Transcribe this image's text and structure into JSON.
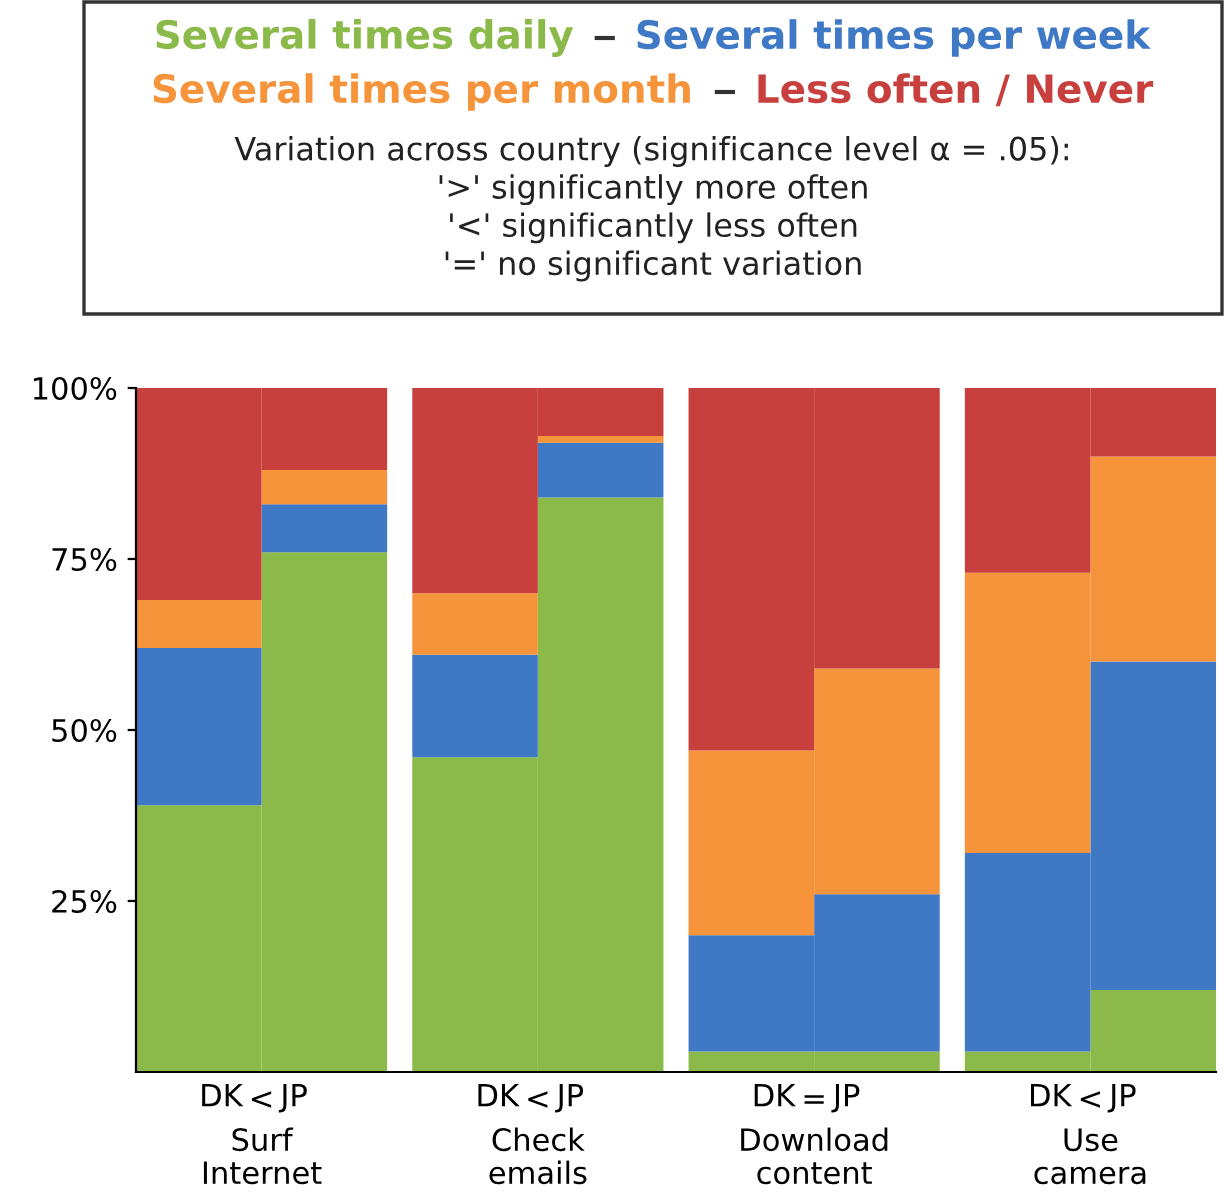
{
  "chart_data": {
    "type": "bar",
    "stacked": true,
    "categories": [
      "DK",
      "JP",
      "DK",
      "JP",
      "DK",
      "JP",
      "DK",
      "JP"
    ],
    "series": [
      {
        "name": "Several times daily",
        "color": "#8cba4a",
        "values": [
          39,
          76,
          46,
          84,
          3,
          3,
          3,
          12
        ]
      },
      {
        "name": "Several times per week",
        "color": "#3f78c4",
        "values": [
          23,
          7,
          15,
          8,
          17,
          23,
          29,
          48
        ]
      },
      {
        "name": "Several times per month",
        "color": "#f5943a",
        "values": [
          7,
          5,
          9,
          1,
          27,
          33,
          41,
          30
        ]
      },
      {
        "name": "Less often / Never",
        "color": "#c8403d",
        "values": [
          31,
          12,
          30,
          7,
          53,
          41,
          27,
          10
        ]
      }
    ],
    "ylim": [
      0,
      100
    ],
    "yticks": [
      {
        "value": 25,
        "label": "25%"
      },
      {
        "value": 50,
        "label": "50%"
      },
      {
        "value": 75,
        "label": "75%"
      },
      {
        "value": 100,
        "label": "100%"
      }
    ],
    "legend": "top",
    "grid": false,
    "annotations": [
      "Variation across country (significance level α = .05):\n'>' significantly more often\n'<' significantly less often\n'=' no significant variation",
      "<",
      "Surf\nInternet",
      "<",
      "Check\nemails",
      "=",
      "Download\ncontent",
      "<",
      "Use\ncamera"
    ]
  }
}
